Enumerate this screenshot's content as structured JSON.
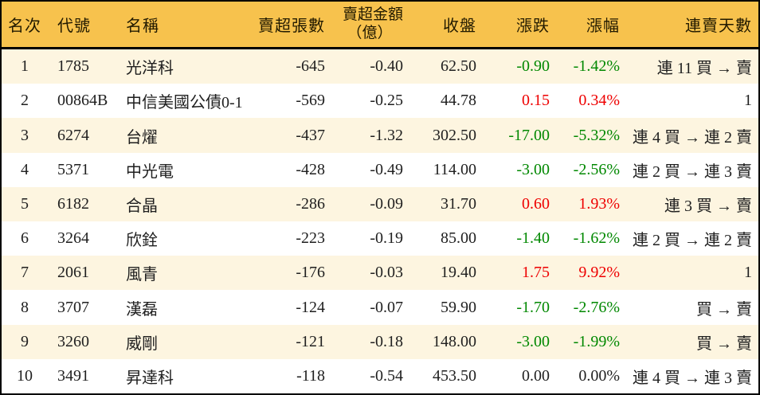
{
  "colors": {
    "header_bg": "#f7c24d",
    "stripe_bg": "#fdf5e0",
    "row_bg": "#ffffff",
    "border": "#000000",
    "text": "#1f1f1f",
    "up": "#ee0000",
    "down": "#008800"
  },
  "chart_data": {
    "type": "table",
    "headers": {
      "rank": "名次",
      "code": "代號",
      "name": "名稱",
      "sell_volume": "賣超張數",
      "sell_amount_line1": "賣超金額",
      "sell_amount_line2": "（億）",
      "close": "收盤",
      "change": "漲跌",
      "change_pct": "漲幅",
      "streak": "連賣天數"
    },
    "rows": [
      {
        "rank": "1",
        "code": "1785",
        "name": "光洋科",
        "sell_volume": "-645",
        "sell_amount": "-0.40",
        "close": "62.50",
        "change": "-0.90",
        "change_pct": "-1.42%",
        "streak": "連 11 買 → 賣",
        "direction": "down"
      },
      {
        "rank": "2",
        "code": "00864B",
        "name": "中信美國公債0-1",
        "sell_volume": "-569",
        "sell_amount": "-0.25",
        "close": "44.78",
        "change": "0.15",
        "change_pct": "0.34%",
        "streak": "1",
        "direction": "up"
      },
      {
        "rank": "3",
        "code": "6274",
        "name": "台燿",
        "sell_volume": "-437",
        "sell_amount": "-1.32",
        "close": "302.50",
        "change": "-17.00",
        "change_pct": "-5.32%",
        "streak": "連 4 買 → 連 2 賣",
        "direction": "down"
      },
      {
        "rank": "4",
        "code": "5371",
        "name": "中光電",
        "sell_volume": "-428",
        "sell_amount": "-0.49",
        "close": "114.00",
        "change": "-3.00",
        "change_pct": "-2.56%",
        "streak": "連 2 買 → 連 3 賣",
        "direction": "down"
      },
      {
        "rank": "5",
        "code": "6182",
        "name": "合晶",
        "sell_volume": "-286",
        "sell_amount": "-0.09",
        "close": "31.70",
        "change": "0.60",
        "change_pct": "1.93%",
        "streak": "連 3 買 → 賣",
        "direction": "up"
      },
      {
        "rank": "6",
        "code": "3264",
        "name": "欣銓",
        "sell_volume": "-223",
        "sell_amount": "-0.19",
        "close": "85.00",
        "change": "-1.40",
        "change_pct": "-1.62%",
        "streak": "連 2 買 → 連 2 賣",
        "direction": "down"
      },
      {
        "rank": "7",
        "code": "2061",
        "name": "風青",
        "sell_volume": "-176",
        "sell_amount": "-0.03",
        "close": "19.40",
        "change": "1.75",
        "change_pct": "9.92%",
        "streak": "1",
        "direction": "up"
      },
      {
        "rank": "8",
        "code": "3707",
        "name": "漢磊",
        "sell_volume": "-124",
        "sell_amount": "-0.07",
        "close": "59.90",
        "change": "-1.70",
        "change_pct": "-2.76%",
        "streak": "買 → 賣",
        "direction": "down"
      },
      {
        "rank": "9",
        "code": "3260",
        "name": "威剛",
        "sell_volume": "-121",
        "sell_amount": "-0.18",
        "close": "148.00",
        "change": "-3.00",
        "change_pct": "-1.99%",
        "streak": "買 → 賣",
        "direction": "down"
      },
      {
        "rank": "10",
        "code": "3491",
        "name": "昇達科",
        "sell_volume": "-118",
        "sell_amount": "-0.54",
        "close": "453.50",
        "change": "0.00",
        "change_pct": "0.00%",
        "streak": "連 4 買 → 連 3 賣",
        "direction": "flat"
      }
    ]
  }
}
